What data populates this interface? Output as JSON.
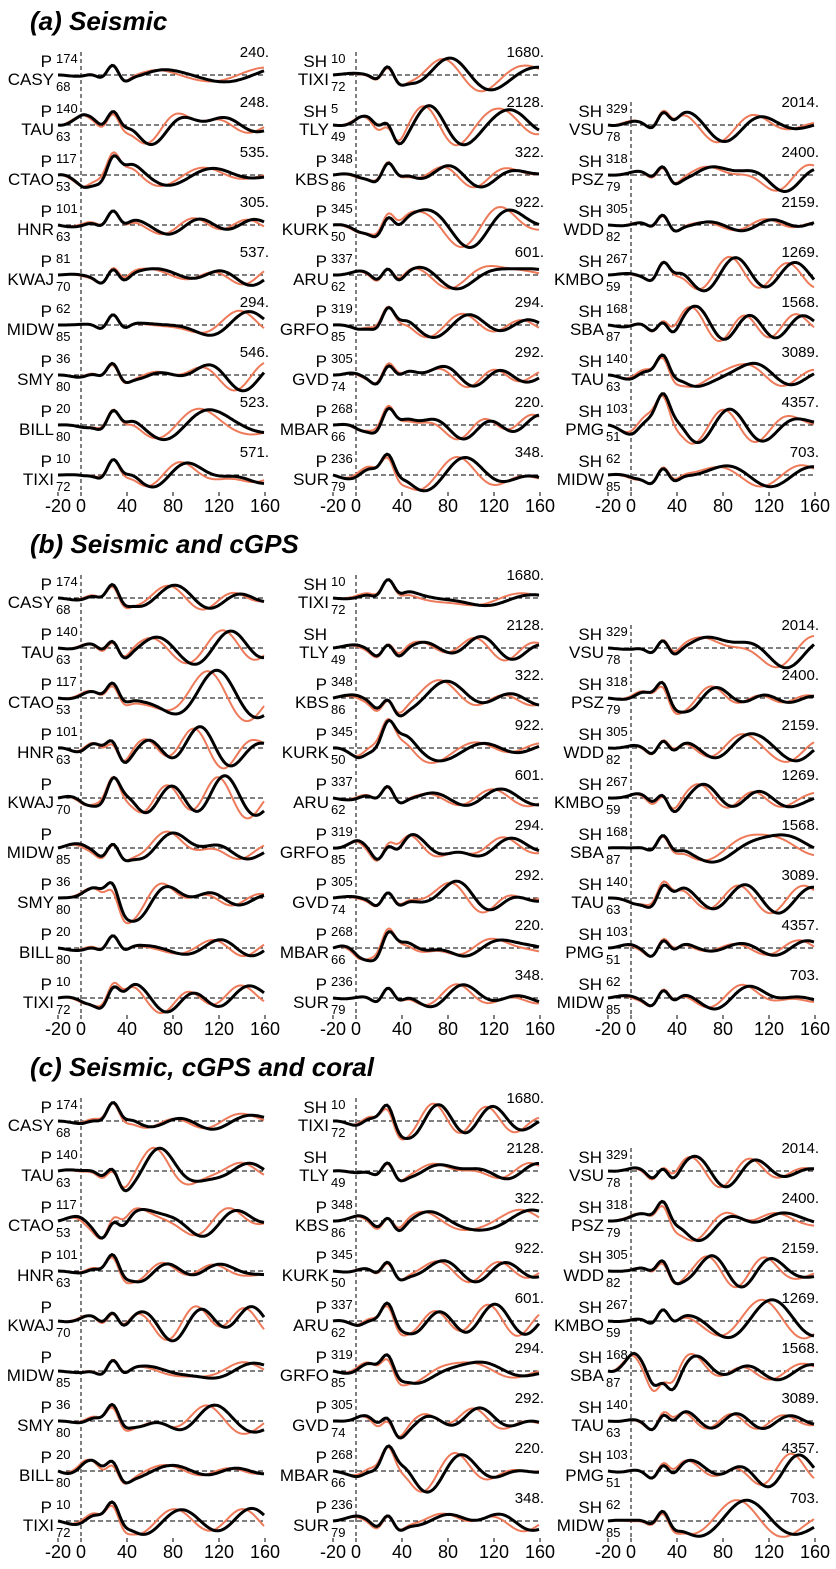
{
  "panels": [
    {
      "title": "(a) Seismic",
      "x_axis": {
        "xlim": [
          -20,
          160
        ],
        "xticks": [
          -20,
          0,
          40,
          80,
          120,
          160
        ]
      },
      "columns": [
        [
          {
            "phase": "P",
            "station": "CASY",
            "azimuth": 174,
            "distance": 68,
            "amplitude": "240."
          },
          {
            "phase": "P",
            "station": "TAU",
            "azimuth": 140,
            "distance": 63,
            "amplitude": "248."
          },
          {
            "phase": "P",
            "station": "CTAO",
            "azimuth": 117,
            "distance": 53,
            "amplitude": "535."
          },
          {
            "phase": "P",
            "station": "HNR",
            "azimuth": 101,
            "distance": 63,
            "amplitude": "305."
          },
          {
            "phase": "P",
            "station": "KWAJ",
            "azimuth": 81,
            "distance": 70,
            "amplitude": "537."
          },
          {
            "phase": "P",
            "station": "MIDW",
            "azimuth": 62,
            "distance": 85,
            "amplitude": "294."
          },
          {
            "phase": "P",
            "station": "SMY",
            "azimuth": 36,
            "distance": 80,
            "amplitude": "546."
          },
          {
            "phase": "P",
            "station": "BILL",
            "azimuth": 20,
            "distance": 80,
            "amplitude": "523."
          },
          {
            "phase": "P",
            "station": "TIXI",
            "azimuth": 10,
            "distance": 72,
            "amplitude": "571."
          }
        ],
        [
          {
            "phase": "SH",
            "station": "TIXI",
            "azimuth": 10,
            "distance": 72,
            "amplitude": "1680."
          },
          {
            "phase": "SH",
            "station": "TLY",
            "azimuth": 5,
            "distance": 49,
            "amplitude": "2128."
          },
          {
            "phase": "P",
            "station": "KBS",
            "azimuth": 348,
            "distance": 86,
            "amplitude": "322."
          },
          {
            "phase": "P",
            "station": "KURK",
            "azimuth": 345,
            "distance": 50,
            "amplitude": "922."
          },
          {
            "phase": "P",
            "station": "ARU",
            "azimuth": 337,
            "distance": 62,
            "amplitude": "601."
          },
          {
            "phase": "P",
            "station": "GRFO",
            "azimuth": 319,
            "distance": 85,
            "amplitude": "294."
          },
          {
            "phase": "P",
            "station": "GVD",
            "azimuth": 305,
            "distance": 74,
            "amplitude": "292."
          },
          {
            "phase": "P",
            "station": "MBAR",
            "azimuth": 268,
            "distance": 66,
            "amplitude": "220."
          },
          {
            "phase": "P",
            "station": "SUR",
            "azimuth": 236,
            "distance": 79,
            "amplitude": "348."
          }
        ],
        [
          {
            "phase": "SH",
            "station": "VSU",
            "azimuth": 329,
            "distance": 78,
            "amplitude": "2014."
          },
          {
            "phase": "SH",
            "station": "PSZ",
            "azimuth": 318,
            "distance": 79,
            "amplitude": "2400."
          },
          {
            "phase": "SH",
            "station": "WDD",
            "azimuth": 305,
            "distance": 82,
            "amplitude": "2159."
          },
          {
            "phase": "SH",
            "station": "KMBO",
            "azimuth": 267,
            "distance": 59,
            "amplitude": "1269."
          },
          {
            "phase": "SH",
            "station": "SBA",
            "azimuth": 168,
            "distance": 87,
            "amplitude": "1568."
          },
          {
            "phase": "SH",
            "station": "TAU",
            "azimuth": 140,
            "distance": 63,
            "amplitude": "3089."
          },
          {
            "phase": "SH",
            "station": "PMG",
            "azimuth": 103,
            "distance": 51,
            "amplitude": "4357."
          },
          {
            "phase": "SH",
            "station": "MIDW",
            "azimuth": 62,
            "distance": 85,
            "amplitude": "703."
          }
        ]
      ]
    },
    {
      "title": "(b) Seismic and cGPS",
      "x_axis": {
        "xlim": [
          -20,
          160
        ],
        "xticks": [
          -20,
          0,
          40,
          80,
          120,
          160
        ]
      },
      "columns": [
        [
          {
            "phase": "P",
            "station": "CASY",
            "azimuth": 174,
            "distance": 68
          },
          {
            "phase": "P",
            "station": "TAU",
            "azimuth": 140,
            "distance": 63
          },
          {
            "phase": "P",
            "station": "CTAO",
            "azimuth": 117,
            "distance": 53
          },
          {
            "phase": "P",
            "station": "HNR",
            "azimuth": 101,
            "distance": 63
          },
          {
            "phase": "P",
            "station": "KWAJ",
            "distance": 70
          },
          {
            "phase": "P",
            "station": "MIDW",
            "distance": 85
          },
          {
            "phase": "P",
            "station": "SMY",
            "azimuth": 36,
            "distance": 80
          },
          {
            "phase": "P",
            "station": "BILL",
            "azimuth": 20,
            "distance": 80
          },
          {
            "phase": "P",
            "station": "TIXI",
            "azimuth": 10,
            "distance": 72
          }
        ],
        [
          {
            "phase": "SH",
            "station": "TIXI",
            "azimuth": 10,
            "distance": 72,
            "amplitude": "1680."
          },
          {
            "phase": "SH",
            "station": "TLY",
            "distance": 49,
            "amplitude": "2128."
          },
          {
            "phase": "P",
            "station": "KBS",
            "azimuth": 348,
            "distance": 86,
            "amplitude": "322."
          },
          {
            "phase": "P",
            "station": "KURK",
            "azimuth": 345,
            "distance": 50,
            "amplitude": "922."
          },
          {
            "phase": "P",
            "station": "ARU",
            "azimuth": 337,
            "distance": 62,
            "amplitude": "601."
          },
          {
            "phase": "P",
            "station": "GRFO",
            "azimuth": 319,
            "distance": 85,
            "amplitude": "294."
          },
          {
            "phase": "P",
            "station": "GVD",
            "azimuth": 305,
            "distance": 74,
            "amplitude": "292."
          },
          {
            "phase": "P",
            "station": "MBAR",
            "azimuth": 268,
            "distance": 66,
            "amplitude": "220."
          },
          {
            "phase": "P",
            "station": "SUR",
            "azimuth": 236,
            "distance": 79,
            "amplitude": "348."
          }
        ],
        [
          {
            "phase": "SH",
            "station": "VSU",
            "azimuth": 329,
            "distance": 78,
            "amplitude": "2014."
          },
          {
            "phase": "SH",
            "station": "PSZ",
            "azimuth": 318,
            "distance": 79,
            "amplitude": "2400."
          },
          {
            "phase": "SH",
            "station": "WDD",
            "azimuth": 305,
            "distance": 82,
            "amplitude": "2159."
          },
          {
            "phase": "SH",
            "station": "KMBO",
            "azimuth": 267,
            "distance": 59,
            "amplitude": "1269."
          },
          {
            "phase": "SH",
            "station": "SBA",
            "azimuth": 168,
            "distance": 87,
            "amplitude": "1568."
          },
          {
            "phase": "SH",
            "station": "TAU",
            "azimuth": 140,
            "distance": 63,
            "amplitude": "3089."
          },
          {
            "phase": "SH",
            "station": "PMG",
            "azimuth": 103,
            "distance": 51,
            "amplitude": "4357."
          },
          {
            "phase": "SH",
            "station": "MIDW",
            "azimuth": 62,
            "distance": 85,
            "amplitude": "703."
          }
        ]
      ]
    },
    {
      "title": "(c) Seismic, cGPS and coral",
      "x_axis": {
        "xlim": [
          -20,
          160
        ],
        "xticks": [
          -20,
          0,
          40,
          80,
          120,
          160
        ]
      },
      "columns": [
        [
          {
            "phase": "P",
            "station": "CASY",
            "azimuth": 174,
            "distance": 68
          },
          {
            "phase": "P",
            "station": "TAU",
            "azimuth": 140,
            "distance": 63
          },
          {
            "phase": "P",
            "station": "CTAO",
            "azimuth": 117,
            "distance": 53
          },
          {
            "phase": "P",
            "station": "HNR",
            "azimuth": 101,
            "distance": 63
          },
          {
            "phase": "P",
            "station": "KWAJ",
            "distance": 70
          },
          {
            "phase": "P",
            "station": "MIDW",
            "distance": 85
          },
          {
            "phase": "P",
            "station": "SMY",
            "azimuth": 36,
            "distance": 80
          },
          {
            "phase": "P",
            "station": "BILL",
            "azimuth": 20,
            "distance": 80
          },
          {
            "phase": "P",
            "station": "TIXI",
            "azimuth": 10,
            "distance": 72
          }
        ],
        [
          {
            "phase": "SH",
            "station": "TIXI",
            "azimuth": 10,
            "distance": 72,
            "amplitude": "1680."
          },
          {
            "phase": "SH",
            "station": "TLY",
            "distance": 49,
            "amplitude": "2128."
          },
          {
            "phase": "P",
            "station": "KBS",
            "azimuth": 348,
            "distance": 86,
            "amplitude": "322."
          },
          {
            "phase": "P",
            "station": "KURK",
            "azimuth": 345,
            "distance": 50,
            "amplitude": "922."
          },
          {
            "phase": "P",
            "station": "ARU",
            "azimuth": 337,
            "distance": 62,
            "amplitude": "601."
          },
          {
            "phase": "P",
            "station": "GRFO",
            "azimuth": 319,
            "distance": 85,
            "amplitude": "294."
          },
          {
            "phase": "P",
            "station": "GVD",
            "azimuth": 305,
            "distance": 74,
            "amplitude": "292."
          },
          {
            "phase": "P",
            "station": "MBAR",
            "azimuth": 268,
            "distance": 66,
            "amplitude": "220."
          },
          {
            "phase": "P",
            "station": "SUR",
            "azimuth": 236,
            "distance": 79,
            "amplitude": "348."
          }
        ],
        [
          {
            "phase": "SH",
            "station": "VSU",
            "azimuth": 329,
            "distance": 78,
            "amplitude": "2014."
          },
          {
            "phase": "SH",
            "station": "PSZ",
            "azimuth": 318,
            "distance": 79,
            "amplitude": "2400."
          },
          {
            "phase": "SH",
            "station": "WDD",
            "azimuth": 305,
            "distance": 82,
            "amplitude": "2159."
          },
          {
            "phase": "SH",
            "station": "KMBO",
            "azimuth": 267,
            "distance": 59,
            "amplitude": "1269."
          },
          {
            "phase": "SH",
            "station": "SBA",
            "azimuth": 168,
            "distance": 87,
            "amplitude": "1568."
          },
          {
            "phase": "SH",
            "station": "TAU",
            "azimuth": 140,
            "distance": 63,
            "amplitude": "3089."
          },
          {
            "phase": "SH",
            "station": "PMG",
            "azimuth": 103,
            "distance": 51,
            "amplitude": "4357."
          },
          {
            "phase": "SH",
            "station": "MIDW",
            "azimuth": 62,
            "distance": 85,
            "amplitude": "703."
          }
        ]
      ]
    }
  ]
}
